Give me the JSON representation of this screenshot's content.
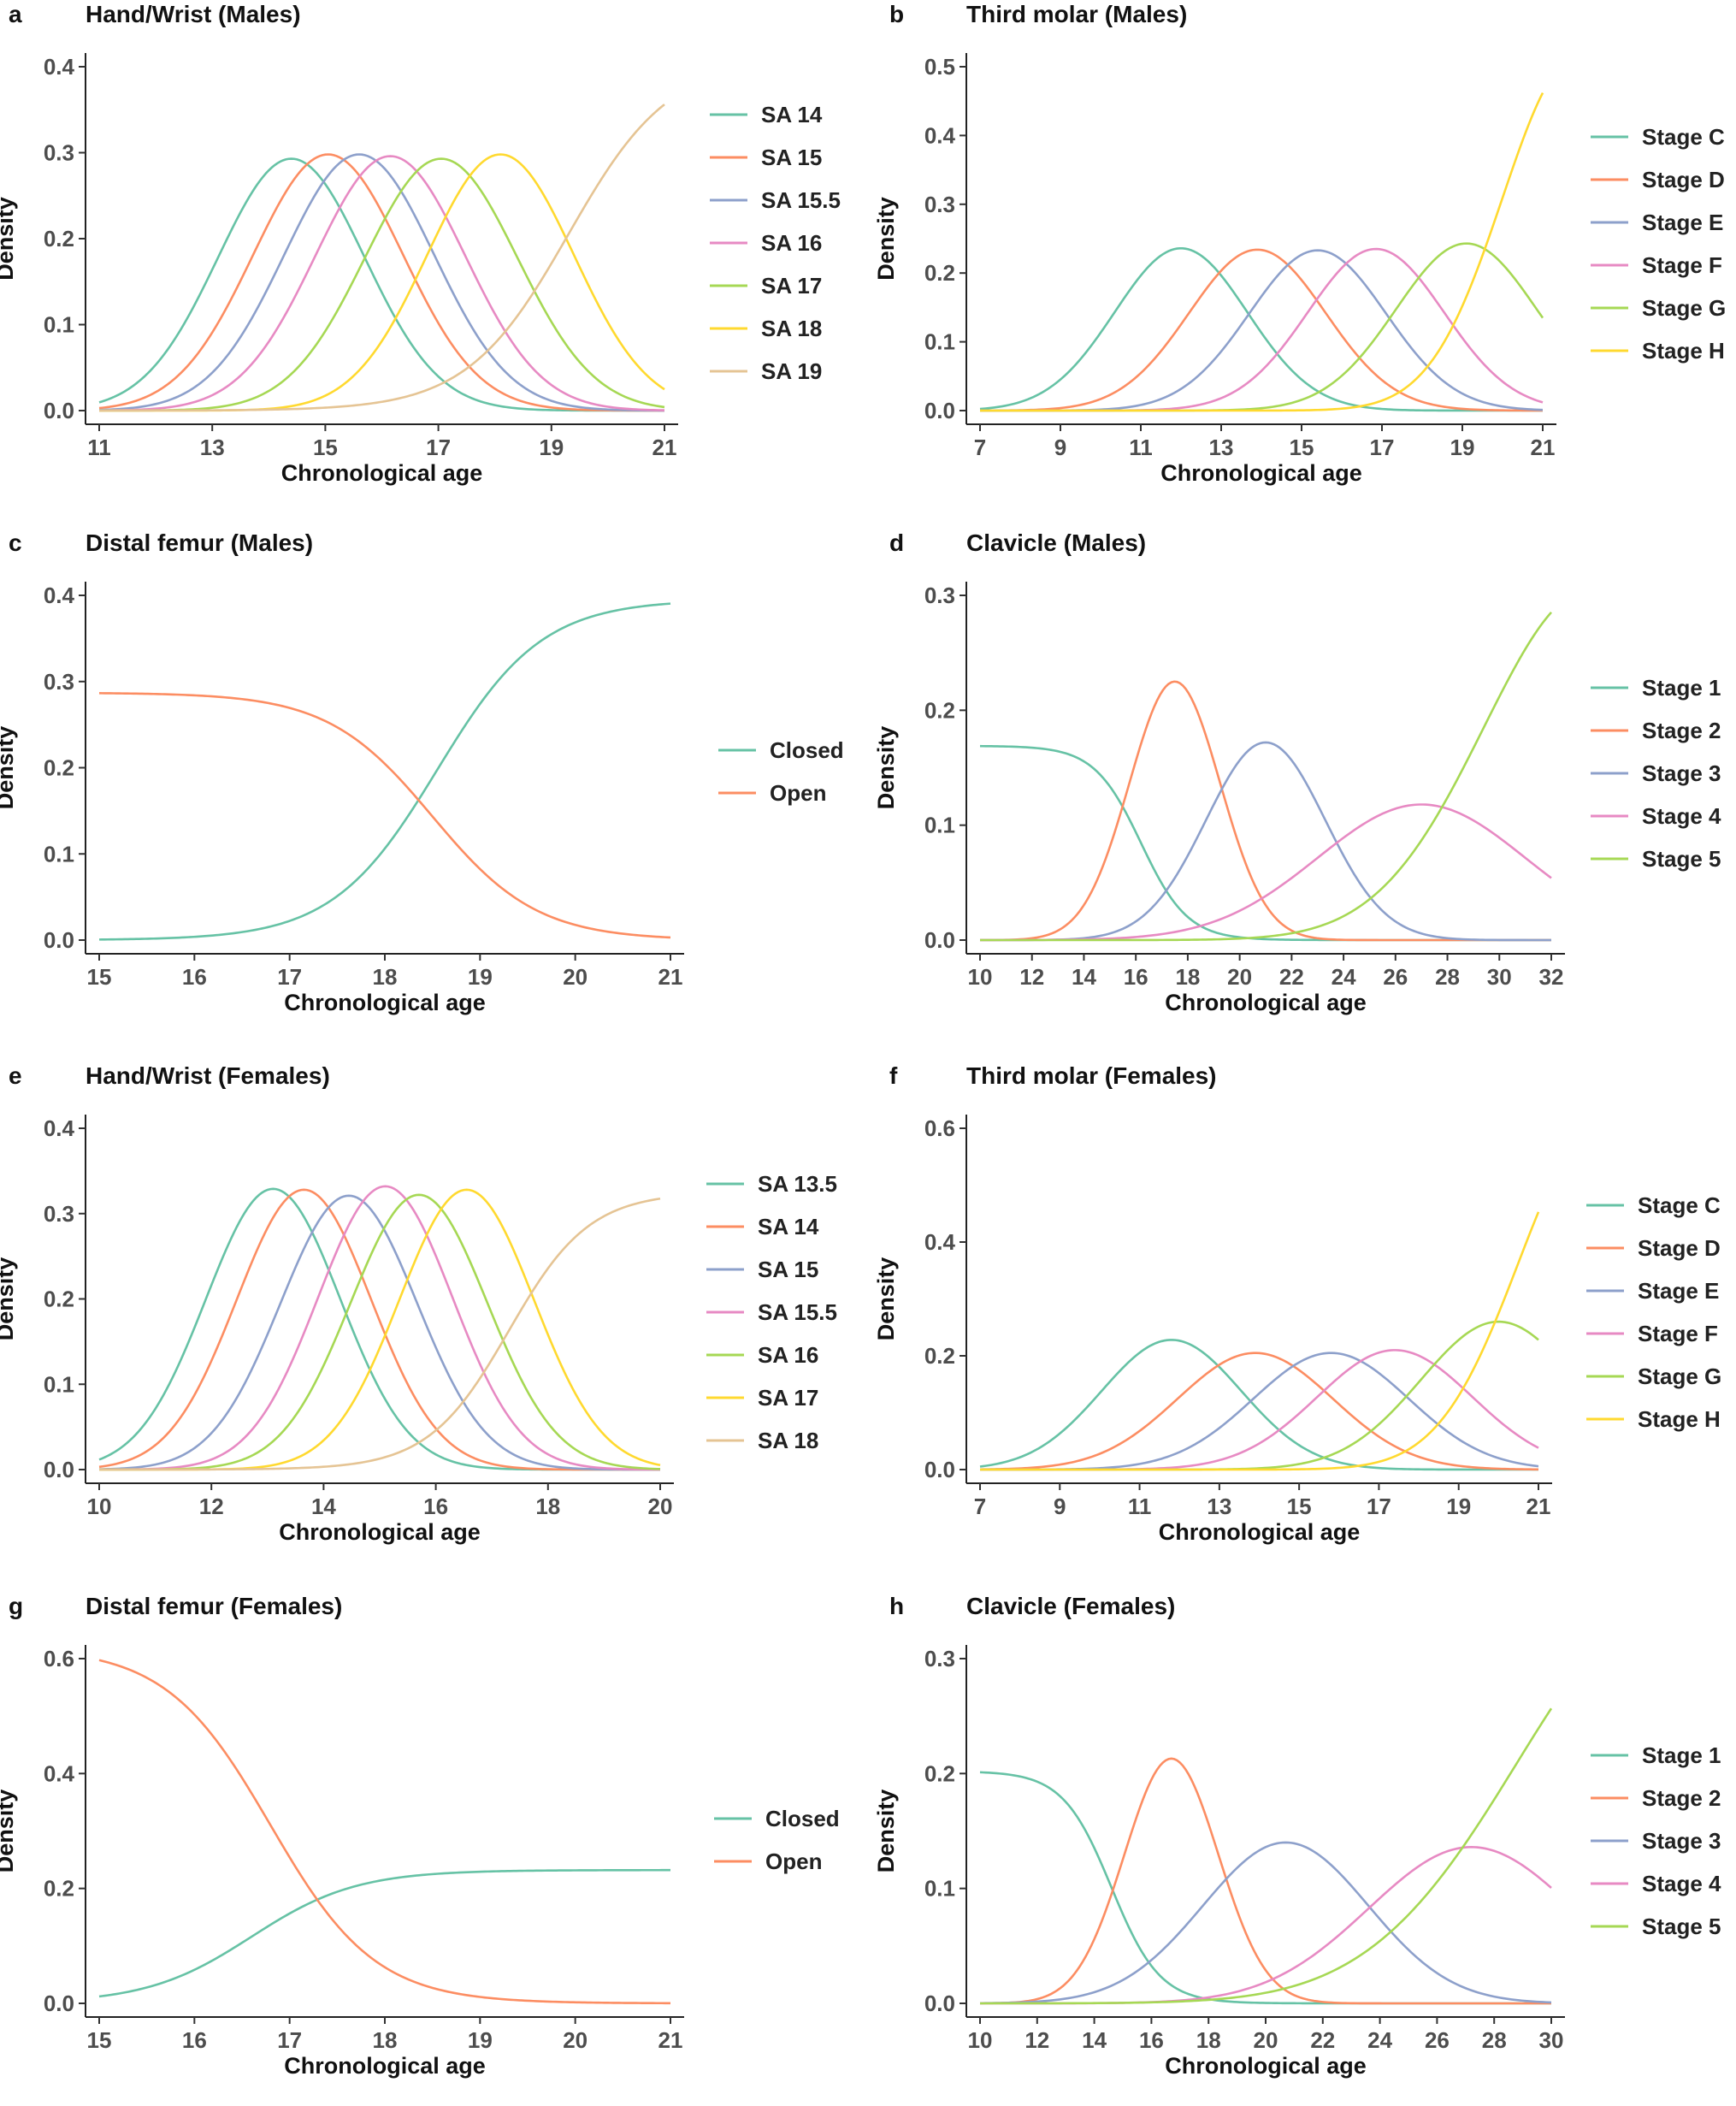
{
  "chart_data": [
    {
      "id": "a",
      "panel_label": "a",
      "title": "Hand/Wrist (Males)",
      "type": "line",
      "xlabel": "Chronological age",
      "ylabel": "Density",
      "xlim": [
        11,
        21
      ],
      "ylim": [
        0,
        0.4
      ],
      "x_ticks": [
        11,
        13,
        15,
        17,
        19,
        21
      ],
      "y_ticks": [
        0.0,
        0.1,
        0.2,
        0.3,
        0.4
      ],
      "legend_position": "right",
      "series": [
        {
          "name": "SA 14",
          "color": "#66C2A5",
          "kind": "gauss",
          "mu": 14.4,
          "sd": 1.3,
          "peak": 0.293
        },
        {
          "name": "SA 15",
          "color": "#FC8D62",
          "kind": "gauss",
          "mu": 15.05,
          "sd": 1.33,
          "peak": 0.298
        },
        {
          "name": "SA 15.5",
          "color": "#8DA0CB",
          "kind": "gauss",
          "mu": 15.6,
          "sd": 1.33,
          "peak": 0.298
        },
        {
          "name": "SA 16",
          "color": "#E78AC3",
          "kind": "gauss",
          "mu": 16.15,
          "sd": 1.33,
          "peak": 0.296
        },
        {
          "name": "SA 17",
          "color": "#A6D854",
          "kind": "gauss",
          "mu": 17.05,
          "sd": 1.35,
          "peak": 0.293
        },
        {
          "name": "SA 18",
          "color": "#FFD92F",
          "kind": "gauss",
          "mu": 18.1,
          "sd": 1.3,
          "peak": 0.298
        },
        {
          "name": "SA 19",
          "color": "#E5C494",
          "kind": "sigmoid",
          "start": 0.0,
          "end": 0.41,
          "mid": 19.3,
          "scale": 0.9
        }
      ]
    },
    {
      "id": "b",
      "panel_label": "b",
      "title": "Third molar (Males)",
      "type": "line",
      "xlabel": "Chronological age",
      "ylabel": "Density",
      "xlim": [
        7,
        21
      ],
      "ylim": [
        0,
        0.5
      ],
      "x_ticks": [
        7,
        9,
        11,
        13,
        15,
        17,
        19,
        21
      ],
      "y_ticks": [
        0.0,
        0.1,
        0.2,
        0.3,
        0.4,
        0.5
      ],
      "legend_position": "right",
      "series": [
        {
          "name": "Stage C",
          "color": "#66C2A5",
          "kind": "gauss",
          "mu": 12.0,
          "sd": 1.65,
          "peak": 0.236
        },
        {
          "name": "Stage D",
          "color": "#FC8D62",
          "kind": "gauss",
          "mu": 13.9,
          "sd": 1.7,
          "peak": 0.234
        },
        {
          "name": "Stage E",
          "color": "#8DA0CB",
          "kind": "gauss",
          "mu": 15.4,
          "sd": 1.7,
          "peak": 0.233
        },
        {
          "name": "Stage F",
          "color": "#E78AC3",
          "kind": "gauss",
          "mu": 16.85,
          "sd": 1.7,
          "peak": 0.235
        },
        {
          "name": "Stage G",
          "color": "#A6D854",
          "kind": "gauss",
          "mu": 19.1,
          "sd": 1.75,
          "peak": 0.243
        },
        {
          "name": "Stage H",
          "color": "#FFD92F",
          "kind": "gauss",
          "mu": 21.8,
          "sd": 1.8,
          "peak": 0.51
        }
      ]
    },
    {
      "id": "c",
      "panel_label": "c",
      "title": "Distal femur (Males)",
      "type": "line",
      "xlabel": "Chronological age",
      "ylabel": "Density",
      "xlim": [
        15,
        21
      ],
      "ylim": [
        0,
        0.4
      ],
      "x_ticks": [
        15,
        16,
        17,
        18,
        19,
        20,
        21
      ],
      "y_ticks": [
        0.0,
        0.1,
        0.2,
        0.3,
        0.4
      ],
      "legend_position": "right",
      "series": [
        {
          "name": "Closed",
          "color": "#66C2A5",
          "kind": "sigmoid",
          "start": 0.0,
          "end": 0.395,
          "mid": 18.55,
          "scale": 0.55
        },
        {
          "name": "Open",
          "color": "#FC8D62",
          "kind": "sigmoid",
          "start": 0.287,
          "end": 0.0,
          "mid": 18.5,
          "scale": 0.55
        }
      ]
    },
    {
      "id": "d",
      "panel_label": "d",
      "title": "Clavicle (Males)",
      "type": "line",
      "xlabel": "Chronological age",
      "ylabel": "Density",
      "xlim": [
        10,
        32
      ],
      "ylim": [
        0,
        0.3
      ],
      "x_ticks": [
        10,
        12,
        14,
        16,
        18,
        20,
        22,
        24,
        26,
        28,
        30,
        32
      ],
      "y_ticks": [
        0.0,
        0.1,
        0.2,
        0.3
      ],
      "legend_position": "right",
      "series": [
        {
          "name": "Stage 1",
          "color": "#66C2A5",
          "kind": "sigmoid",
          "start": 0.169,
          "end": 0.0,
          "mid": 16.2,
          "scale": 0.9
        },
        {
          "name": "Stage 2",
          "color": "#FC8D62",
          "kind": "gauss",
          "mu": 17.5,
          "sd": 1.75,
          "peak": 0.225
        },
        {
          "name": "Stage 3",
          "color": "#8DA0CB",
          "kind": "gauss",
          "mu": 21.0,
          "sd": 2.3,
          "peak": 0.172
        },
        {
          "name": "Stage 4",
          "color": "#E78AC3",
          "kind": "gauss",
          "mu": 27.0,
          "sd": 4.0,
          "peak": 0.118
        },
        {
          "name": "Stage 5",
          "color": "#A6D854",
          "kind": "gauss",
          "mu": 33.5,
          "sd": 4.1,
          "peak": 0.305
        }
      ]
    },
    {
      "id": "e",
      "panel_label": "e",
      "title": "Hand/Wrist (Females)",
      "type": "line",
      "xlabel": "Chronological age",
      "ylabel": "Density",
      "xlim": [
        10,
        20
      ],
      "ylim": [
        0,
        0.4
      ],
      "x_ticks": [
        10,
        12,
        14,
        16,
        18,
        20
      ],
      "y_ticks": [
        0.0,
        0.1,
        0.2,
        0.3,
        0.4
      ],
      "legend_position": "right",
      "series": [
        {
          "name": "SA 13.5",
          "color": "#66C2A5",
          "kind": "gauss",
          "mu": 13.1,
          "sd": 1.2,
          "peak": 0.329
        },
        {
          "name": "SA 14",
          "color": "#FC8D62",
          "kind": "gauss",
          "mu": 13.65,
          "sd": 1.2,
          "peak": 0.328
        },
        {
          "name": "SA 15",
          "color": "#8DA0CB",
          "kind": "gauss",
          "mu": 14.45,
          "sd": 1.22,
          "peak": 0.321
        },
        {
          "name": "SA 15.5",
          "color": "#E78AC3",
          "kind": "gauss",
          "mu": 15.1,
          "sd": 1.2,
          "peak": 0.332
        },
        {
          "name": "SA 16",
          "color": "#A6D854",
          "kind": "gauss",
          "mu": 15.7,
          "sd": 1.22,
          "peak": 0.322
        },
        {
          "name": "SA 17",
          "color": "#FFD92F",
          "kind": "gauss",
          "mu": 16.55,
          "sd": 1.2,
          "peak": 0.328
        },
        {
          "name": "SA 18",
          "color": "#E5C494",
          "kind": "sigmoid",
          "start": 0.0,
          "end": 0.325,
          "mid": 17.3,
          "scale": 0.72
        }
      ]
    },
    {
      "id": "f",
      "panel_label": "f",
      "title": "Third molar (Females)",
      "type": "line",
      "xlabel": "Chronological age",
      "ylabel": "Density",
      "xlim": [
        7,
        21
      ],
      "ylim": [
        0,
        0.6
      ],
      "x_ticks": [
        7,
        9,
        11,
        13,
        15,
        17,
        19,
        21
      ],
      "y_ticks": [
        0.0,
        0.2,
        0.4,
        0.6
      ],
      "legend_position": "right",
      "series": [
        {
          "name": "Stage C",
          "color": "#66C2A5",
          "kind": "gauss",
          "mu": 11.8,
          "sd": 1.75,
          "peak": 0.228
        },
        {
          "name": "Stage D",
          "color": "#FC8D62",
          "kind": "gauss",
          "mu": 13.9,
          "sd": 1.95,
          "peak": 0.205
        },
        {
          "name": "Stage E",
          "color": "#8DA0CB",
          "kind": "gauss",
          "mu": 15.8,
          "sd": 1.95,
          "peak": 0.205
        },
        {
          "name": "Stage F",
          "color": "#E78AC3",
          "kind": "gauss",
          "mu": 17.4,
          "sd": 1.95,
          "peak": 0.21
        },
        {
          "name": "Stage G",
          "color": "#A6D854",
          "kind": "gauss",
          "mu": 20.0,
          "sd": 1.95,
          "peak": 0.26
        },
        {
          "name": "Stage H",
          "color": "#FFD92F",
          "kind": "gauss",
          "mu": 22.5,
          "sd": 2.0,
          "peak": 0.6
        }
      ]
    },
    {
      "id": "g",
      "panel_label": "g",
      "title": "Distal femur (Females)",
      "type": "line",
      "xlabel": "Chronological age",
      "ylabel": "Density",
      "xlim": [
        15,
        21
      ],
      "ylim": [
        0,
        0.6
      ],
      "x_ticks": [
        15,
        16,
        17,
        18,
        19,
        20,
        21
      ],
      "y_ticks": [
        0.0,
        0.2,
        0.4,
        0.6
      ],
      "legend_position": "right",
      "series": [
        {
          "name": "Closed",
          "color": "#66C2A5",
          "kind": "sigmoid",
          "start": 0.0,
          "end": 0.232,
          "mid": 16.6,
          "scale": 0.55
        },
        {
          "name": "Open",
          "color": "#FC8D62",
          "kind": "sigmoid",
          "start": 0.62,
          "end": 0.0,
          "mid": 16.8,
          "scale": 0.55
        }
      ]
    },
    {
      "id": "h",
      "panel_label": "h",
      "title": "Clavicle (Females)",
      "type": "line",
      "xlabel": "Chronological age",
      "ylabel": "Density",
      "xlim": [
        10,
        30
      ],
      "ylim": [
        0,
        0.3
      ],
      "x_ticks": [
        10,
        12,
        14,
        16,
        18,
        20,
        22,
        24,
        26,
        28,
        30
      ],
      "y_ticks": [
        0.0,
        0.1,
        0.2,
        0.3
      ],
      "legend_position": "right",
      "series": [
        {
          "name": "Stage 1",
          "color": "#66C2A5",
          "kind": "sigmoid",
          "start": 0.202,
          "end": 0.0,
          "mid": 14.6,
          "scale": 0.85
        },
        {
          "name": "Stage 2",
          "color": "#FC8D62",
          "kind": "gauss",
          "mu": 16.7,
          "sd": 1.65,
          "peak": 0.213
        },
        {
          "name": "Stage 3",
          "color": "#8DA0CB",
          "kind": "gauss",
          "mu": 20.7,
          "sd": 2.9,
          "peak": 0.14
        },
        {
          "name": "Stage 4",
          "color": "#E78AC3",
          "kind": "gauss",
          "mu": 27.2,
          "sd": 3.6,
          "peak": 0.136
        },
        {
          "name": "Stage 5",
          "color": "#A6D854",
          "kind": "gauss",
          "mu": 34.0,
          "sd": 5.2,
          "peak": 0.345
        }
      ]
    }
  ]
}
